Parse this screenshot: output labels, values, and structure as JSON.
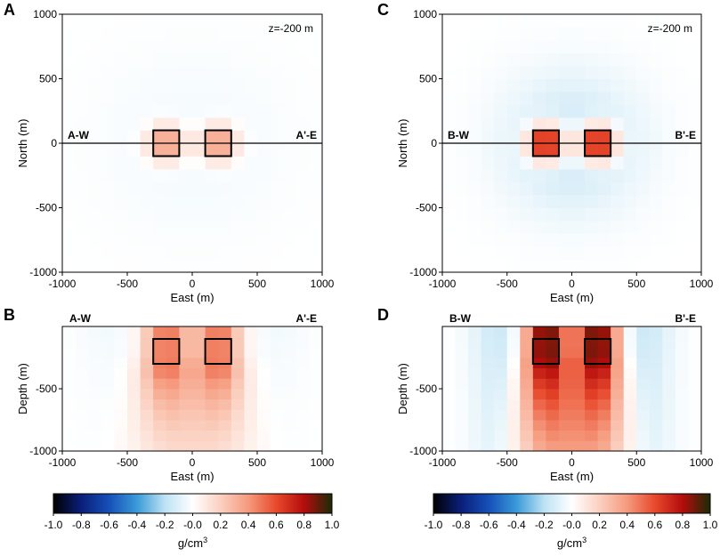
{
  "chart_data": [
    {
      "panel": "A",
      "type": "heatmap",
      "title": "",
      "annotation": "z=-200 m",
      "xlabel": "East (m)",
      "ylabel": "North (m)",
      "xlim": [
        -1000,
        1000
      ],
      "ylim": [
        -1000,
        1000
      ],
      "xticks": [
        "-1000",
        "-500",
        "0",
        "500",
        "1000"
      ],
      "yticks": [
        "-1000",
        "-500",
        "0",
        "500",
        "1000"
      ],
      "profile_left": "A-W",
      "profile_right": "A'-E",
      "field": "mapA",
      "boxes": [
        {
          "x": [
            -300,
            -100
          ],
          "y": [
            -100,
            100
          ]
        },
        {
          "x": [
            100,
            300
          ],
          "y": [
            -100,
            100
          ]
        }
      ],
      "profile_y": 0
    },
    {
      "panel": "C",
      "type": "heatmap",
      "title": "",
      "annotation": "z=-200 m",
      "xlabel": "East (m)",
      "ylabel": "North (m)",
      "xlim": [
        -1000,
        1000
      ],
      "ylim": [
        -1000,
        1000
      ],
      "xticks": [
        "-1000",
        "-500",
        "0",
        "500",
        "1000"
      ],
      "yticks": [
        "-1000",
        "-500",
        "0",
        "500",
        "1000"
      ],
      "profile_left": "B-W",
      "profile_right": "B'-E",
      "field": "mapC",
      "boxes": [
        {
          "x": [
            -300,
            -100
          ],
          "y": [
            -100,
            100
          ]
        },
        {
          "x": [
            100,
            300
          ],
          "y": [
            -100,
            100
          ]
        }
      ],
      "profile_y": 0
    },
    {
      "panel": "B",
      "type": "heatmap",
      "title": "",
      "annotation": "",
      "xlabel": "East (m)",
      "ylabel": "Depth (m)",
      "xlim": [
        -1000,
        1000
      ],
      "ylim": [
        -1000,
        0
      ],
      "xticks": [
        "-1000",
        "-500",
        "0",
        "500",
        "1000"
      ],
      "yticks": [
        "-1000",
        "-500"
      ],
      "profile_left": "A-W",
      "profile_right": "A'-E",
      "field": "secB",
      "boxes": [
        {
          "x": [
            -300,
            -100
          ],
          "y": [
            -300,
            -100
          ]
        },
        {
          "x": [
            100,
            300
          ],
          "y": [
            -300,
            -100
          ]
        }
      ]
    },
    {
      "panel": "D",
      "type": "heatmap",
      "title": "",
      "annotation": "",
      "xlabel": "East (m)",
      "ylabel": "Depth (m)",
      "xlim": [
        -1000,
        1000
      ],
      "ylim": [
        -1000,
        0
      ],
      "xticks": [
        "-1000",
        "-500",
        "0",
        "500",
        "1000"
      ],
      "yticks": [
        "-1000",
        "-500"
      ],
      "profile_left": "B-W",
      "profile_right": "B'-E",
      "field": "secD",
      "boxes": [
        {
          "x": [
            -300,
            -100
          ],
          "y": [
            -300,
            -100
          ]
        },
        {
          "x": [
            100,
            300
          ],
          "y": [
            -300,
            -100
          ]
        }
      ]
    }
  ],
  "colorbar": {
    "range": [
      -1.0,
      1.0
    ],
    "ticks": [
      "-1.0",
      "-0.8",
      "-0.6",
      "-0.4",
      "-0.2",
      "-0.0",
      "0.2",
      "0.4",
      "0.6",
      "0.8",
      "1.0"
    ],
    "unit_main": "g/cm",
    "unit_sup": "3",
    "stops": [
      {
        "v": -1.0,
        "c": "#000000"
      },
      {
        "v": -0.8,
        "c": "#0a1f7a"
      },
      {
        "v": -0.6,
        "c": "#1550b8"
      },
      {
        "v": -0.4,
        "c": "#3a9ad8"
      },
      {
        "v": -0.2,
        "c": "#bde2f3"
      },
      {
        "v": 0.0,
        "c": "#ffffff"
      },
      {
        "v": 0.2,
        "c": "#fbd0c0"
      },
      {
        "v": 0.4,
        "c": "#f59a7d"
      },
      {
        "v": 0.6,
        "c": "#e8492c"
      },
      {
        "v": 0.8,
        "c": "#b40c0c"
      },
      {
        "v": 1.0,
        "c": "#1a2c08"
      }
    ]
  }
}
